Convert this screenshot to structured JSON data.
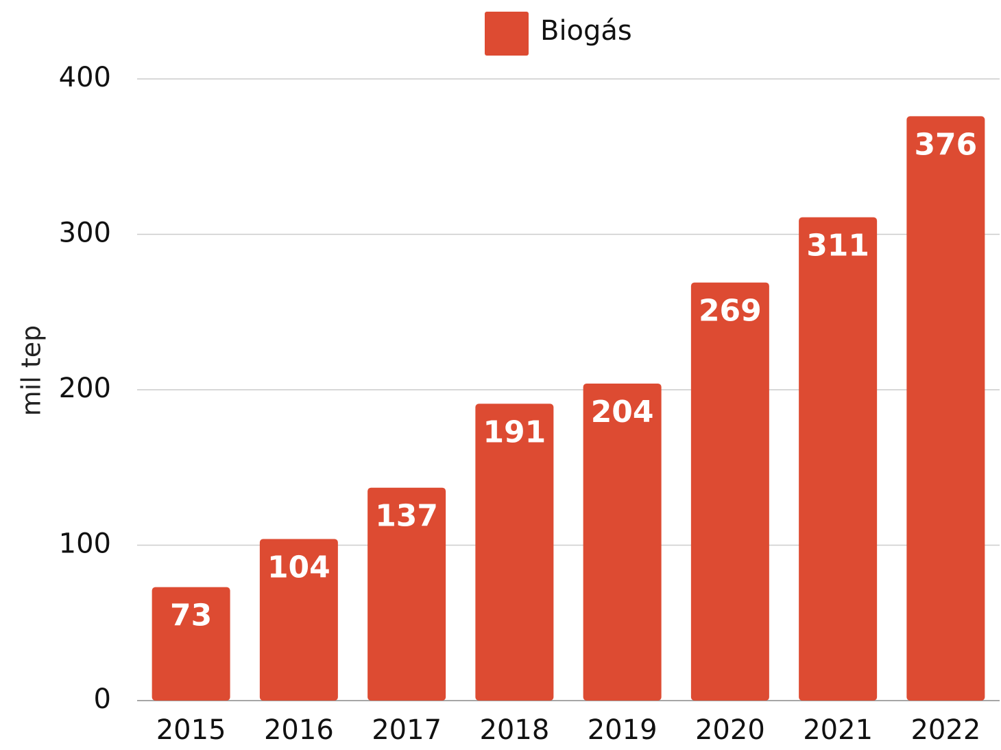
{
  "chart_data": {
    "type": "bar",
    "y_label": "mil tep",
    "categories": [
      "2015",
      "2016",
      "2017",
      "2018",
      "2019",
      "2020",
      "2021",
      "2022"
    ],
    "series": [
      {
        "name": "Biogás",
        "color": "#dd4b32",
        "values": [
          73,
          104,
          137,
          191,
          204,
          269,
          311,
          376
        ]
      }
    ],
    "ylim": [
      0,
      400
    ],
    "yticks": [
      0,
      100,
      200,
      300,
      400
    ],
    "grid": true,
    "legend": "top"
  }
}
